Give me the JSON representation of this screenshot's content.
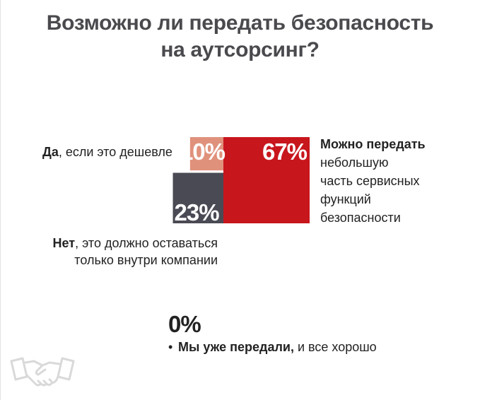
{
  "title_line1": "Возможно ли передать безопасность",
  "title_line2": "на аутсорсинг?",
  "chart_data": {
    "type": "area-squares",
    "title": "Возможно ли передать безопасность на аутсорсинг?",
    "series": [
      {
        "name": "Можно передать небольшую часть сервисных функций безопасности",
        "value": 67,
        "label": "67%",
        "color": "#c8161d"
      },
      {
        "name": "Нет, это должно оставаться только внутри компании",
        "value": 23,
        "label": "23%",
        "color": "#4a4a54"
      },
      {
        "name": "Да, если это дешевле",
        "value": 10,
        "label": "10%",
        "color": "#e0917c"
      },
      {
        "name": "Мы уже передали, и все хорошо",
        "value": 0,
        "label": "0%",
        "color": "#222222"
      }
    ]
  },
  "labels": {
    "yes_bold": "Да",
    "yes_rest": ", если это дешевле",
    "no_bold": "Нет",
    "no_rest1": ", это должно оставаться",
    "no_line2": "только внутри компании",
    "can_bold": "Можно передать",
    "can_line2": "небольшую",
    "can_line3": "часть сервисных",
    "can_line4": "функций",
    "can_line5": "безопасности",
    "zero_pct": "0%",
    "bullet_char": "•",
    "done_bold": "Мы уже передали,",
    "done_rest": " и все хорошо"
  },
  "logo_icon": "handshake-icon"
}
